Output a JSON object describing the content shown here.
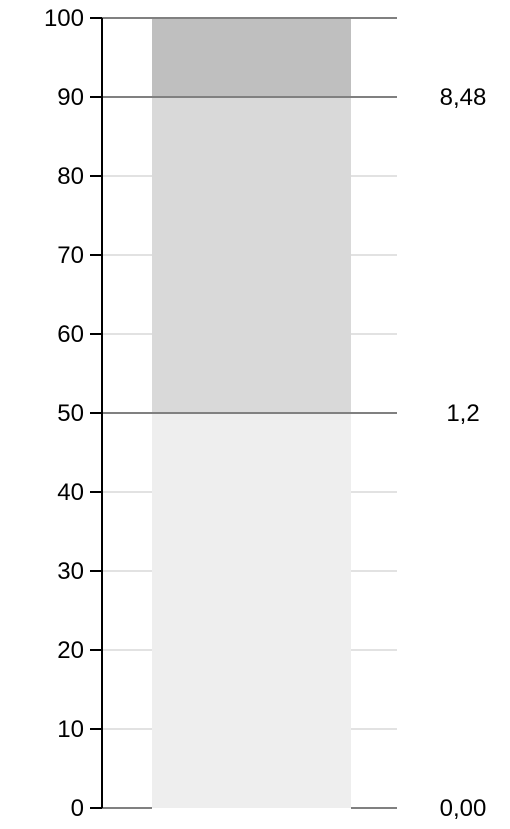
{
  "chart_data": {
    "type": "bar",
    "ylim": [
      0,
      100
    ],
    "yticks": [
      0,
      10,
      20,
      30,
      40,
      50,
      60,
      70,
      80,
      90,
      100
    ],
    "ytick_labels": [
      "0",
      "10",
      "20",
      "30",
      "40",
      "50",
      "60",
      "70",
      "80",
      "90",
      "100"
    ],
    "segments": [
      {
        "from": 0,
        "to": 50,
        "color": "#eeeeee"
      },
      {
        "from": 50,
        "to": 90,
        "color": "#d9d9d9"
      },
      {
        "from": 90,
        "to": 100,
        "color": "#bfbfbf"
      }
    ],
    "threshold_lines": [
      0,
      50,
      90,
      100
    ],
    "side_labels": [
      {
        "y": 0,
        "text": "0,00"
      },
      {
        "y": 50,
        "text": "1,2"
      },
      {
        "y": 90,
        "text": "8,48"
      }
    ],
    "grid": true,
    "colors": {
      "threshold_line": "#808080",
      "grid_line": "#d9d9d9",
      "axis": "#000000"
    }
  }
}
